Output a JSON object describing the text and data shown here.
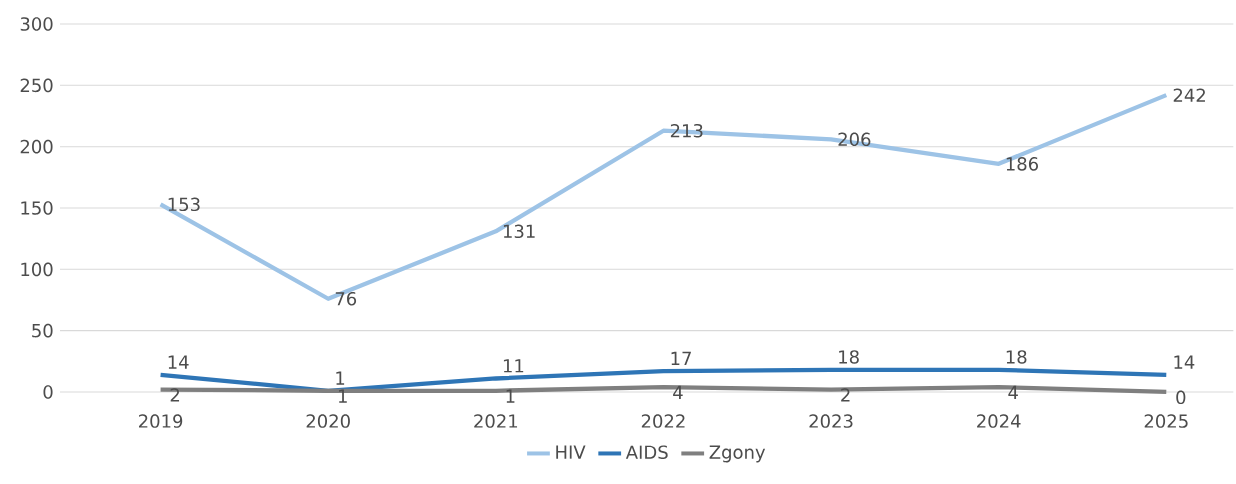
{
  "chart_data": {
    "type": "line",
    "categories": [
      "2019",
      "2020",
      "2021",
      "2022",
      "2023",
      "2024",
      "2025"
    ],
    "series": [
      {
        "name": "HIV",
        "color": "#9dc3e6",
        "values": [
          153,
          76,
          131,
          213,
          206,
          186,
          242
        ]
      },
      {
        "name": "AIDS",
        "color": "#2e75b6",
        "values": [
          14,
          1,
          11,
          17,
          18,
          18,
          14
        ]
      },
      {
        "name": "Zgony",
        "color": "#7f7f7f",
        "values": [
          2,
          1,
          1,
          4,
          2,
          4,
          0
        ]
      }
    ],
    "ylim": [
      0,
      300
    ],
    "yticks": [
      0,
      50,
      100,
      150,
      200,
      250,
      300
    ],
    "grid": "y",
    "legend": "bottom",
    "data_labels": true,
    "marker": "none",
    "line_style": "solid"
  }
}
